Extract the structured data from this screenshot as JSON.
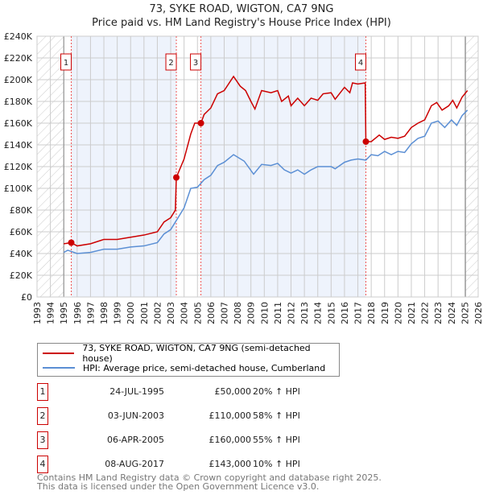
{
  "title": "73, SYKE ROAD, WIGTON, CA7 9NG",
  "subtitle": "Price paid vs. HM Land Registry's House Price Index (HPI)",
  "chart_data": {
    "type": "line",
    "title": "73, SYKE ROAD, WIGTON, CA7 9NG",
    "ylabel": "",
    "xlabel": "",
    "xlim": [
      1993,
      2026
    ],
    "ylim": [
      0,
      240000
    ],
    "yticks": [
      "£0",
      "£20K",
      "£40K",
      "£60K",
      "£80K",
      "£100K",
      "£120K",
      "£140K",
      "£160K",
      "£180K",
      "£200K",
      "£220K",
      "£240K"
    ],
    "xticks": [
      "1993",
      "1994",
      "1995",
      "1996",
      "1997",
      "1998",
      "1999",
      "2000",
      "2001",
      "2002",
      "2003",
      "2004",
      "2005",
      "2006",
      "2007",
      "2008",
      "2009",
      "2010",
      "2011",
      "2012",
      "2013",
      "2014",
      "2015",
      "2016",
      "2017",
      "2018",
      "2019",
      "2020",
      "2021",
      "2022",
      "2023",
      "2024",
      "2025",
      "2026"
    ],
    "grid": true,
    "series": [
      {
        "name": "73, SYKE ROAD, WIGTON, CA7 9NG (semi-detached house)",
        "color": "#cc0000",
        "points": [
          [
            1995,
            49
          ],
          [
            1995.56,
            50
          ],
          [
            1996,
            47
          ],
          [
            1997,
            49
          ],
          [
            1998,
            53
          ],
          [
            1999,
            53
          ],
          [
            2000,
            55
          ],
          [
            2001,
            57
          ],
          [
            2002,
            60
          ],
          [
            2002.5,
            69
          ],
          [
            2003,
            73
          ],
          [
            2003.35,
            80
          ],
          [
            2003.42,
            110
          ],
          [
            2004,
            127
          ],
          [
            2004.5,
            150
          ],
          [
            2004.8,
            160
          ],
          [
            2005.26,
            160
          ],
          [
            2005.5,
            168
          ],
          [
            2006,
            174
          ],
          [
            2006.5,
            187
          ],
          [
            2007,
            190
          ],
          [
            2007.7,
            203
          ],
          [
            2008.2,
            194
          ],
          [
            2008.6,
            190
          ],
          [
            2009,
            180
          ],
          [
            2009.3,
            173
          ],
          [
            2009.8,
            190
          ],
          [
            2010.5,
            188
          ],
          [
            2011,
            190
          ],
          [
            2011.3,
            180
          ],
          [
            2011.8,
            185
          ],
          [
            2012,
            176
          ],
          [
            2012.5,
            183
          ],
          [
            2013,
            176
          ],
          [
            2013.5,
            183
          ],
          [
            2014,
            181
          ],
          [
            2014.4,
            187
          ],
          [
            2015,
            188
          ],
          [
            2015.3,
            182
          ],
          [
            2016,
            193
          ],
          [
            2016.4,
            188
          ],
          [
            2016.6,
            197
          ],
          [
            2017,
            196
          ],
          [
            2017.55,
            197
          ],
          [
            2017.6,
            143
          ],
          [
            2018,
            143
          ],
          [
            2018.6,
            149
          ],
          [
            2019,
            145
          ],
          [
            2019.5,
            147
          ],
          [
            2020,
            146
          ],
          [
            2020.5,
            148
          ],
          [
            2021,
            156
          ],
          [
            2021.5,
            160
          ],
          [
            2022,
            163
          ],
          [
            2022.5,
            176
          ],
          [
            2022.9,
            179
          ],
          [
            2023.3,
            172
          ],
          [
            2023.8,
            176
          ],
          [
            2024.1,
            181
          ],
          [
            2024.4,
            174
          ],
          [
            2024.8,
            184
          ],
          [
            2025.2,
            190
          ]
        ]
      },
      {
        "name": "HPI: Average price, semi-detached house, Cumberland",
        "color": "#5b8fd4",
        "points": [
          [
            1995,
            41
          ],
          [
            1995.3,
            43
          ],
          [
            1996,
            40
          ],
          [
            1997,
            41
          ],
          [
            1998,
            44
          ],
          [
            1999,
            44
          ],
          [
            2000,
            46
          ],
          [
            2001,
            47
          ],
          [
            2002,
            50
          ],
          [
            2002.5,
            58
          ],
          [
            2003,
            62
          ],
          [
            2003.5,
            72
          ],
          [
            2004,
            82
          ],
          [
            2004.5,
            100
          ],
          [
            2005,
            101
          ],
          [
            2005.5,
            108
          ],
          [
            2006,
            112
          ],
          [
            2006.5,
            121
          ],
          [
            2007,
            124
          ],
          [
            2007.7,
            131
          ],
          [
            2008.5,
            125
          ],
          [
            2009.2,
            113
          ],
          [
            2009.8,
            122
          ],
          [
            2010.5,
            121
          ],
          [
            2011,
            123
          ],
          [
            2011.5,
            117
          ],
          [
            2012,
            114
          ],
          [
            2012.5,
            117
          ],
          [
            2013,
            113
          ],
          [
            2013.5,
            117
          ],
          [
            2014,
            120
          ],
          [
            2015,
            120
          ],
          [
            2015.3,
            118
          ],
          [
            2016,
            124
          ],
          [
            2016.5,
            126
          ],
          [
            2017,
            127
          ],
          [
            2017.6,
            126
          ],
          [
            2018,
            131
          ],
          [
            2018.5,
            130
          ],
          [
            2019,
            134
          ],
          [
            2019.5,
            131
          ],
          [
            2020,
            134
          ],
          [
            2020.5,
            133
          ],
          [
            2021,
            141
          ],
          [
            2021.5,
            146
          ],
          [
            2022,
            148
          ],
          [
            2022.5,
            160
          ],
          [
            2023,
            162
          ],
          [
            2023.5,
            156
          ],
          [
            2024,
            163
          ],
          [
            2024.4,
            158
          ],
          [
            2024.8,
            167
          ],
          [
            2025.2,
            172
          ]
        ]
      }
    ],
    "sales": [
      {
        "label": "1",
        "year": 1995.56,
        "price": 50000
      },
      {
        "label": "2",
        "year": 2003.42,
        "price": 110000
      },
      {
        "label": "3",
        "year": 2005.26,
        "price": 160000
      },
      {
        "label": "4",
        "year": 2017.6,
        "price": 143000
      }
    ],
    "data_range": [
      1995,
      2025.05
    ],
    "legend_position": "below"
  },
  "legend": [
    "73, SYKE ROAD, WIGTON, CA7 9NG (semi-detached house)",
    "HPI: Average price, semi-detached house, Cumberland"
  ],
  "transactions": [
    {
      "num": "1",
      "date": "24-JUL-1995",
      "price": "£50,000",
      "hpi": "20% ↑ HPI"
    },
    {
      "num": "2",
      "date": "03-JUN-2003",
      "price": "£110,000",
      "hpi": "58% ↑ HPI"
    },
    {
      "num": "3",
      "date": "06-APR-2005",
      "price": "£160,000",
      "hpi": "55% ↑ HPI"
    },
    {
      "num": "4",
      "date": "08-AUG-2017",
      "price": "£143,000",
      "hpi": "10% ↑ HPI"
    }
  ],
  "footer": [
    "Contains HM Land Registry data © Crown copyright and database right 2025.",
    "This data is licensed under the Open Government Licence v3.0."
  ]
}
